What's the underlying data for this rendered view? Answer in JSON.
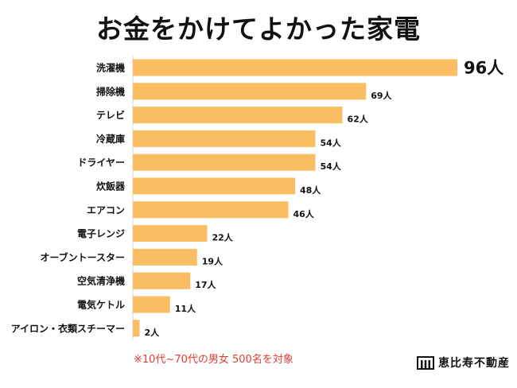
{
  "chart_data": {
    "type": "bar",
    "orientation": "horizontal",
    "title": "お金をかけてよかった家電",
    "categories": [
      "洗濯機",
      "掃除機",
      "テレビ",
      "冷蔵庫",
      "ドライヤー",
      "炊飯器",
      "エアコン",
      "電子レンジ",
      "オーブントースター",
      "空気清浄機",
      "電気ケトル",
      "アイロン・衣類スチーマー"
    ],
    "values": [
      96,
      69,
      62,
      54,
      54,
      48,
      46,
      22,
      19,
      17,
      11,
      2
    ],
    "value_labels": [
      "96人",
      "69人",
      "62人",
      "54人",
      "54人",
      "48人",
      "46人",
      "22人",
      "19人",
      "17人",
      "11人",
      "2人"
    ],
    "unit": "人",
    "bar_color": "#fbbd61",
    "note_color": "#e23b36",
    "xlim": [
      0,
      96
    ],
    "grid": false,
    "legend": "none"
  },
  "footnote": "※10代~70代の男女 500名を対象",
  "brand": {
    "name": "恵比寿不動産",
    "icon": "building-logo-icon"
  }
}
